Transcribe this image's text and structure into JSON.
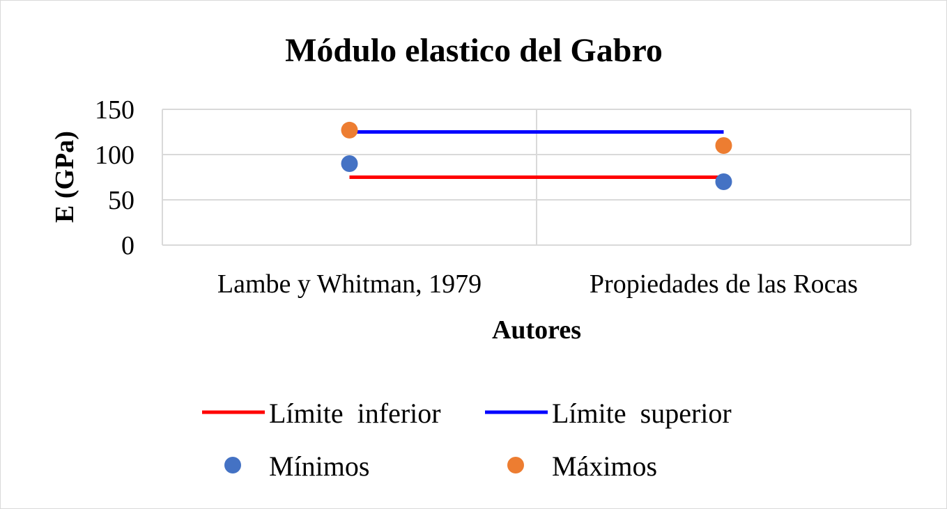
{
  "chart_data": {
    "type": "line",
    "title": "Módulo elastico del Gabro",
    "xlabel": "Autores",
    "ylabel": "E (GPa)",
    "categories": [
      "Lambe y Whitman, 1979",
      "Propiedades de las Rocas"
    ],
    "ylim": [
      0,
      150
    ],
    "yticks": [
      0,
      50,
      100,
      150
    ],
    "grid": true,
    "legend_position": "bottom",
    "series": [
      {
        "name": "Límite  inferior",
        "kind": "line",
        "color": "#ff0000",
        "values": [
          75,
          75
        ]
      },
      {
        "name": "Límite  superior",
        "kind": "line",
        "color": "#0000ff",
        "values": [
          125,
          125
        ]
      },
      {
        "name": "Mínimos",
        "kind": "marker",
        "color": "#4472c4",
        "values": [
          90,
          70
        ]
      },
      {
        "name": "Máximos",
        "kind": "marker",
        "color": "#ed7d31",
        "values": [
          127,
          110
        ]
      }
    ]
  }
}
